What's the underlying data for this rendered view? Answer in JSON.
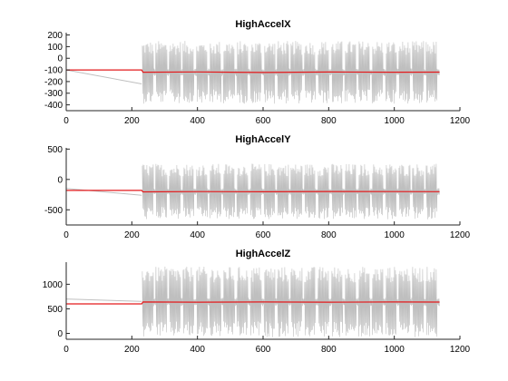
{
  "chart_data": [
    {
      "type": "line",
      "title": "HighAccelX",
      "xlabel": "",
      "ylabel": "",
      "xlim": [
        0,
        1200
      ],
      "ylim": [
        -450,
        220
      ],
      "xticks": [
        0,
        200,
        400,
        600,
        800,
        1000,
        1200
      ],
      "yticks": [
        -400,
        -300,
        -200,
        -100,
        0,
        100,
        200
      ],
      "grid": false,
      "legend": "none",
      "series": [
        {
          "role": "raw",
          "color": "#bfbfbf",
          "sparse": [
            [
              0,
              -100
            ],
            [
              230,
              -220
            ]
          ],
          "dense": {
            "x_start": 232,
            "x_end": 1138,
            "center": -120,
            "amplitude": 270,
            "burst_count": 22
          }
        },
        {
          "role": "mean",
          "color": "#e31a1c",
          "points": [
            [
              0,
              -100
            ],
            [
              230,
              -100
            ],
            [
              234,
              -120
            ],
            [
              400,
              -117
            ],
            [
              600,
              -122
            ],
            [
              800,
              -118
            ],
            [
              1000,
              -120
            ],
            [
              1138,
              -119
            ]
          ]
        }
      ]
    },
    {
      "type": "line",
      "title": "HighAccelY",
      "xlabel": "",
      "ylabel": "",
      "xlim": [
        0,
        1200
      ],
      "ylim": [
        -750,
        520
      ],
      "xticks": [
        0,
        200,
        400,
        600,
        800,
        1000,
        1200
      ],
      "yticks": [
        -500,
        0,
        500
      ],
      "grid": false,
      "legend": "none",
      "series": [
        {
          "role": "raw",
          "color": "#bfbfbf",
          "sparse": [
            [
              0,
              -150
            ],
            [
              230,
              -260
            ]
          ],
          "dense": {
            "x_start": 232,
            "x_end": 1138,
            "center": -200,
            "amplitude": 460,
            "burst_count": 22
          }
        },
        {
          "role": "mean",
          "color": "#e31a1c",
          "points": [
            [
              0,
              -180
            ],
            [
              230,
              -180
            ],
            [
              234,
              -205
            ],
            [
              400,
              -200
            ],
            [
              600,
              -203
            ],
            [
              800,
              -198
            ],
            [
              1000,
              -200
            ],
            [
              1138,
              -202
            ]
          ]
        }
      ]
    },
    {
      "type": "line",
      "title": "HighAccelZ",
      "xlabel": "",
      "ylabel": "",
      "xlim": [
        0,
        1200
      ],
      "ylim": [
        -120,
        1450
      ],
      "xticks": [
        0,
        200,
        400,
        600,
        800,
        1000,
        1200
      ],
      "yticks": [
        0,
        500,
        1000
      ],
      "grid": false,
      "legend": "none",
      "series": [
        {
          "role": "raw",
          "color": "#bfbfbf",
          "sparse": [
            [
              0,
              700
            ],
            [
              230,
              650
            ]
          ],
          "dense": {
            "x_start": 232,
            "x_end": 1138,
            "center": 640,
            "amplitude": 720,
            "burst_count": 22
          }
        },
        {
          "role": "mean",
          "color": "#e31a1c",
          "points": [
            [
              0,
              600
            ],
            [
              230,
              600
            ],
            [
              234,
              640
            ],
            [
              400,
              635
            ],
            [
              600,
              640
            ],
            [
              800,
              636
            ],
            [
              1000,
              640
            ],
            [
              1138,
              638
            ]
          ]
        }
      ]
    }
  ]
}
